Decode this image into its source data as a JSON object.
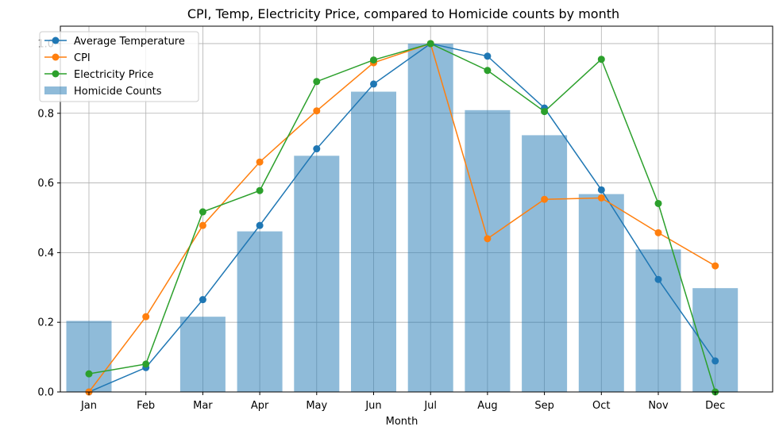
{
  "chart_data": {
    "type": "bar+line",
    "title": "CPI, Temp, Electricity Price, compared to Homicide counts by month",
    "xlabel": "Month",
    "ylabel": "",
    "ylim": [
      0,
      1.05
    ],
    "yticks": [
      "0.0",
      "0.2",
      "0.4",
      "0.6",
      "0.8",
      "1.0"
    ],
    "ytick_values": [
      0,
      0.2,
      0.4,
      0.6,
      0.8,
      1.0
    ],
    "grid": true,
    "legend_position": "top-left",
    "categories": [
      "Jan",
      "Feb",
      "Mar",
      "Apr",
      "May",
      "Jun",
      "Jul",
      "Aug",
      "Sep",
      "Oct",
      "Nov",
      "Dec"
    ],
    "bars": {
      "name": "Homicide Counts",
      "color": "#1f77b4",
      "opacity": 0.5,
      "values": [
        0.204,
        null,
        0.216,
        0.461,
        0.678,
        0.862,
        1.0,
        0.809,
        0.737,
        0.568,
        0.409,
        0.298
      ]
    },
    "series": [
      {
        "name": "Average Temperature",
        "color": "#1f77b4",
        "values": [
          0.0,
          0.07,
          0.265,
          0.478,
          0.698,
          0.884,
          1.0,
          0.964,
          0.815,
          0.58,
          0.323,
          0.089
        ]
      },
      {
        "name": "CPI",
        "color": "#ff7f0e",
        "values": [
          0.0,
          0.216,
          0.478,
          0.66,
          0.807,
          0.945,
          1.0,
          0.44,
          0.553,
          0.557,
          0.457,
          0.362
        ]
      },
      {
        "name": "Electricity Price",
        "color": "#2ca02c",
        "values": [
          0.052,
          0.08,
          0.517,
          0.578,
          0.891,
          0.953,
          1.0,
          0.923,
          0.805,
          0.955,
          0.541,
          0.0
        ]
      }
    ]
  }
}
